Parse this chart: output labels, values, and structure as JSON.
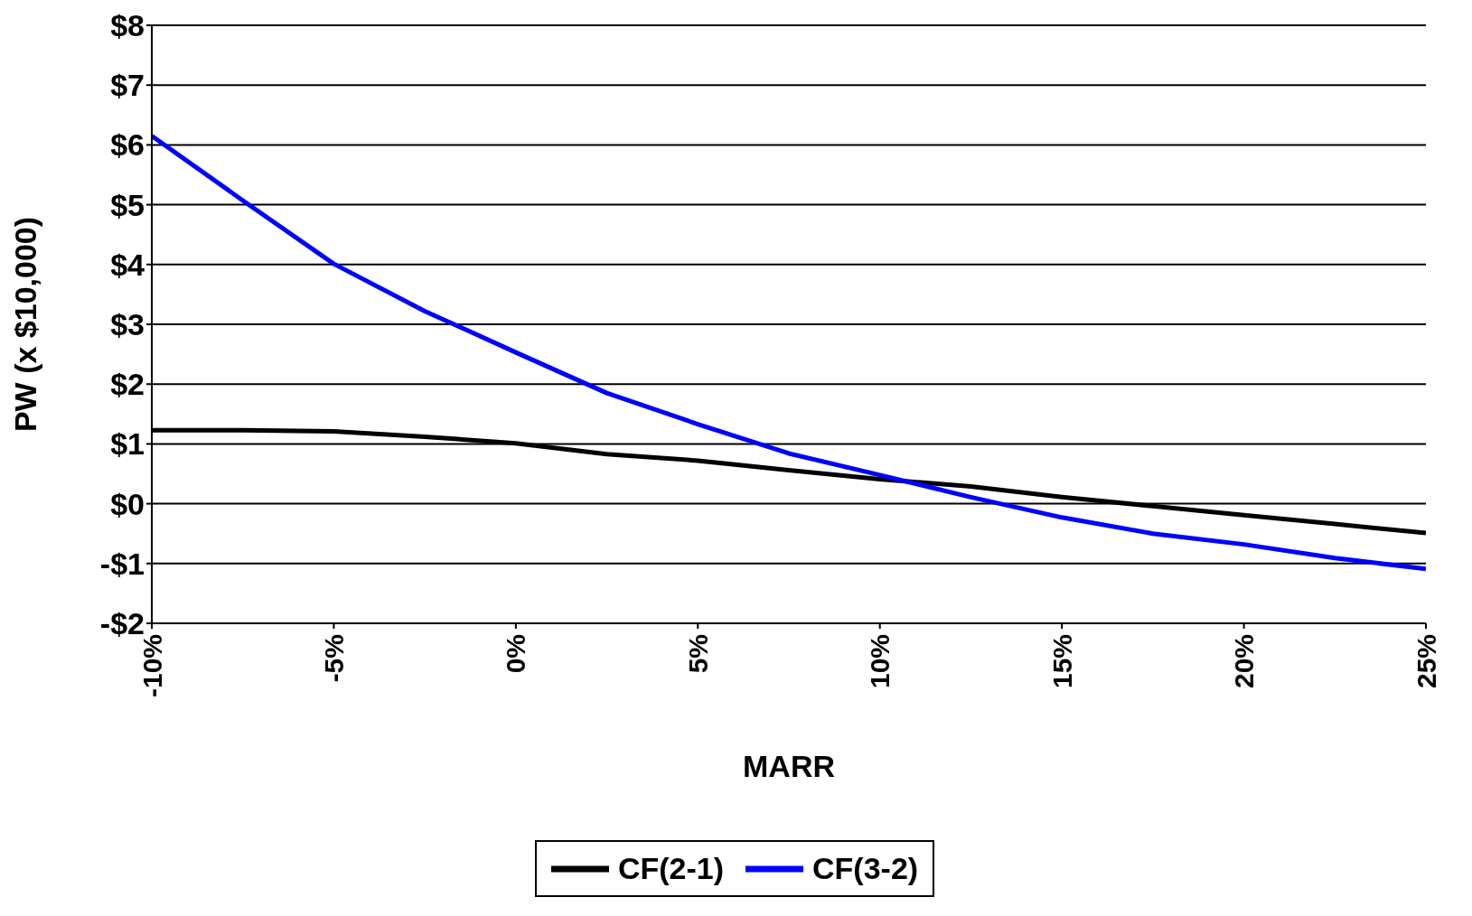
{
  "chart_data": {
    "type": "line",
    "xlabel": "MARR",
    "ylabel": "PW (x $10,000)",
    "x": [
      -10,
      -7.5,
      -5,
      -2.5,
      0,
      2.5,
      5,
      7.5,
      10,
      12.5,
      15,
      17.5,
      20,
      22.5,
      25
    ],
    "series": [
      {
        "name": "CF(2-1)",
        "color": "#000000",
        "values": [
          1.23,
          1.23,
          1.21,
          1.12,
          1.01,
          0.83,
          0.72,
          0.56,
          0.41,
          0.29,
          0.11,
          -0.04,
          -0.19,
          -0.34,
          -0.49
        ]
      },
      {
        "name": "CF(3-2)",
        "color": "#0000ff",
        "values": [
          6.15,
          5.07,
          4.01,
          3.22,
          2.53,
          1.85,
          1.33,
          0.84,
          0.48,
          0.11,
          -0.23,
          -0.5,
          -0.68,
          -0.91,
          -1.09
        ]
      }
    ],
    "xlim": [
      -10,
      25
    ],
    "xticks": [
      {
        "value": -10,
        "label": "-10%"
      },
      {
        "value": -5,
        "label": "-5%"
      },
      {
        "value": 0,
        "label": "0%"
      },
      {
        "value": 5,
        "label": "5%"
      },
      {
        "value": 10,
        "label": "10%"
      },
      {
        "value": 15,
        "label": "15%"
      },
      {
        "value": 20,
        "label": "20%"
      },
      {
        "value": 25,
        "label": "25%"
      }
    ],
    "ylim": [
      -2,
      8
    ],
    "yticks": [
      {
        "value": -2,
        "label": "-$2"
      },
      {
        "value": -1,
        "label": "-$1"
      },
      {
        "value": 0,
        "label": "$0"
      },
      {
        "value": 1,
        "label": "$1"
      },
      {
        "value": 2,
        "label": "$2"
      },
      {
        "value": 3,
        "label": "$3"
      },
      {
        "value": 4,
        "label": "$4"
      },
      {
        "value": 5,
        "label": "$5"
      },
      {
        "value": 6,
        "label": "$6"
      },
      {
        "value": 7,
        "label": "$7"
      },
      {
        "value": 8,
        "label": "$8"
      }
    ],
    "grid": "y",
    "legend": "bottom",
    "marker": "none",
    "line_style": "solid"
  }
}
